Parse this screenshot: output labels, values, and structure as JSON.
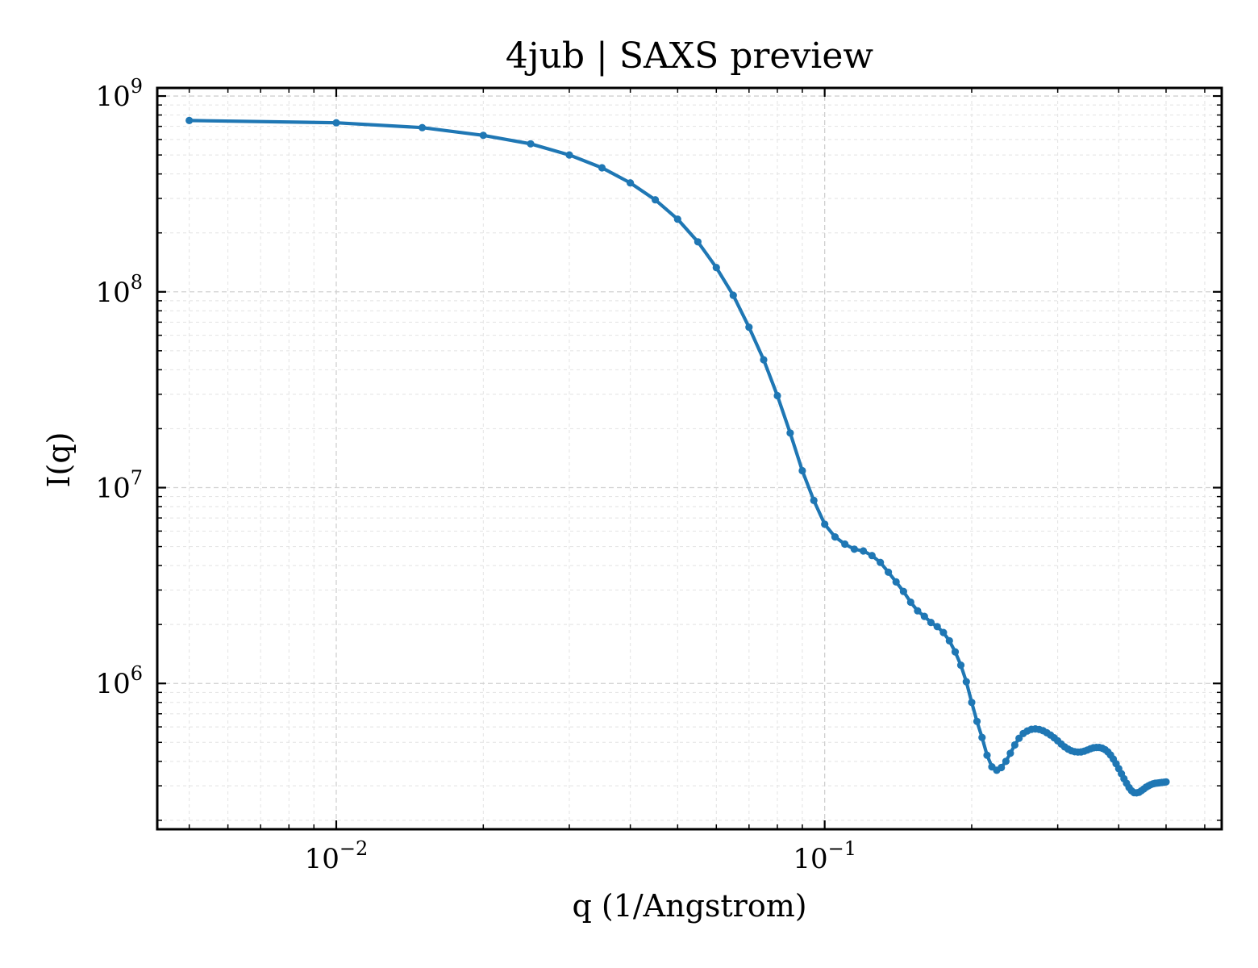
{
  "chart_data": {
    "type": "line",
    "title": "4jub | SAXS preview",
    "xlabel": "q (1/Angstrom)",
    "ylabel": "I(q)",
    "xscale": "log",
    "yscale": "log",
    "xlim": [
      0.0043,
      0.65
    ],
    "ylim": [
      180000,
      1100000000
    ],
    "grid": true,
    "legend": "none",
    "xtick_labels": [
      {
        "value": 0.01,
        "base": "10",
        "exp": "−2"
      },
      {
        "value": 0.1,
        "base": "10",
        "exp": "−1"
      }
    ],
    "ytick_labels": [
      {
        "value": 1000000,
        "base": "10",
        "exp": "6"
      },
      {
        "value": 10000000,
        "base": "10",
        "exp": "7"
      },
      {
        "value": 100000000,
        "base": "10",
        "exp": "8"
      },
      {
        "value": 1000000000,
        "base": "10",
        "exp": "9"
      }
    ],
    "series": [
      {
        "color": "#1f77b4",
        "x": [
          0.005,
          0.01,
          0.015,
          0.02,
          0.025,
          0.03,
          0.035,
          0.04,
          0.045,
          0.05,
          0.055,
          0.06,
          0.065,
          0.07,
          0.075,
          0.08,
          0.085,
          0.09,
          0.095,
          0.1,
          0.105,
          0.11,
          0.115,
          0.12,
          0.125,
          0.13,
          0.135,
          0.14,
          0.145,
          0.15,
          0.155,
          0.16,
          0.165,
          0.17,
          0.175,
          0.18,
          0.185,
          0.19,
          0.195,
          0.2,
          0.205,
          0.21,
          0.215,
          0.22,
          0.225,
          0.23,
          0.235,
          0.24,
          0.245,
          0.25,
          0.255,
          0.26,
          0.265,
          0.27,
          0.275,
          0.28,
          0.285,
          0.29,
          0.295,
          0.3,
          0.305,
          0.31,
          0.315,
          0.32,
          0.325,
          0.33,
          0.335,
          0.34,
          0.345,
          0.35,
          0.355,
          0.36,
          0.365,
          0.37,
          0.375,
          0.38,
          0.385,
          0.39,
          0.395,
          0.4,
          0.405,
          0.41,
          0.415,
          0.42,
          0.425,
          0.43,
          0.435,
          0.44,
          0.445,
          0.45,
          0.455,
          0.46,
          0.465,
          0.47,
          0.475,
          0.48,
          0.485,
          0.49,
          0.495,
          0.5
        ],
        "y": [
          750000000,
          730000000,
          690000000,
          630000000,
          570000000,
          500000000,
          430000000,
          360000000,
          295000000,
          235000000,
          180000000,
          133000000,
          96000000,
          66000000,
          45000000,
          29500000,
          19000000,
          12200000,
          8600000,
          6500000,
          5600000,
          5150000,
          4850000,
          4750000,
          4500000,
          4150000,
          3700000,
          3300000,
          2950000,
          2600000,
          2350000,
          2200000,
          2050000,
          1950000,
          1820000,
          1650000,
          1450000,
          1240000,
          1020000,
          800000,
          640000,
          530000,
          430000,
          375000,
          360000,
          372000,
          400000,
          440000,
          485000,
          525000,
          555000,
          572000,
          583000,
          586000,
          582000,
          573000,
          560000,
          545000,
          528000,
          509000,
          490000,
          474000,
          462000,
          453000,
          448000,
          446000,
          447000,
          451000,
          457000,
          464000,
          469000,
          471000,
          471000,
          467000,
          459000,
          447000,
          431000,
          411000,
          389000,
          367000,
          346000,
          326000,
          309000,
          294000,
          283000,
          277000,
          276000,
          278000,
          283000,
          289000,
          295000,
          300000,
          304000,
          307000,
          309000,
          310000,
          311000,
          312000,
          313000,
          314000
        ]
      }
    ]
  }
}
